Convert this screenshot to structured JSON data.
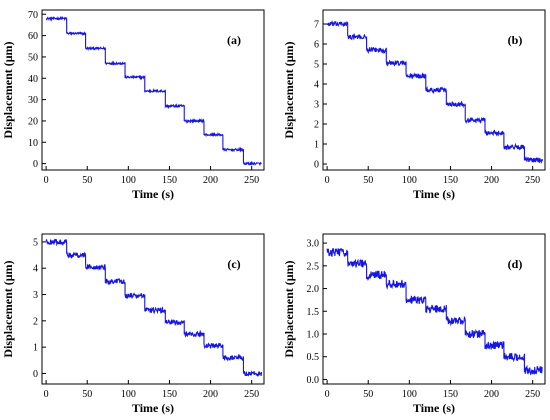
{
  "chart_data": [
    {
      "type": "line",
      "panel_label": "(a)",
      "xlabel": "Time (s)",
      "ylabel": "Displacement (μm)",
      "xlim": [
        -5,
        265
      ],
      "ylim": [
        -3,
        72
      ],
      "xticks": [
        0,
        50,
        100,
        150,
        200,
        250
      ],
      "yticks": [
        0,
        10,
        20,
        30,
        40,
        50,
        60,
        70
      ],
      "tick_labels_x": [
        "0",
        "50",
        "100",
        "150",
        "200",
        "250"
      ],
      "tick_labels_y": [
        "0",
        "10",
        "20",
        "30",
        "40",
        "50",
        "60",
        "70"
      ],
      "step_times": [
        0,
        25,
        48,
        72,
        96,
        120,
        145,
        168,
        192,
        215,
        240,
        262
      ],
      "step_levels": [
        68,
        61,
        54,
        47,
        40.5,
        34,
        27,
        20,
        13.5,
        6.5,
        0
      ],
      "noise": 0.5,
      "color": "#1515e6"
    },
    {
      "type": "line",
      "panel_label": "(b)",
      "xlabel": "Time (s)",
      "ylabel": "Displacement (μm)",
      "xlim": [
        -5,
        265
      ],
      "ylim": [
        -0.3,
        7.7
      ],
      "xticks": [
        0,
        50,
        100,
        150,
        200,
        250
      ],
      "yticks": [
        0,
        1,
        2,
        3,
        4,
        5,
        6,
        7
      ],
      "tick_labels_x": [
        "0",
        "50",
        "100",
        "150",
        "200",
        "250"
      ],
      "tick_labels_y": [
        "0",
        "1",
        "2",
        "3",
        "4",
        "5",
        "6",
        "7"
      ],
      "step_times": [
        0,
        25,
        48,
        72,
        96,
        120,
        145,
        168,
        192,
        215,
        240,
        262
      ],
      "step_levels": [
        7.0,
        6.35,
        5.7,
        5.05,
        4.4,
        3.7,
        3.0,
        2.2,
        1.55,
        0.85,
        0.2
      ],
      "noise": 0.12,
      "color": "#1515e6"
    },
    {
      "type": "line",
      "panel_label": "(c)",
      "xlabel": "Time (s)",
      "ylabel": "Displacement (μm)",
      "xlim": [
        -5,
        265
      ],
      "ylim": [
        -0.4,
        5.3
      ],
      "xticks": [
        0,
        50,
        100,
        150,
        200,
        250
      ],
      "yticks": [
        0,
        1,
        2,
        3,
        4,
        5
      ],
      "tick_labels_x": [
        "0",
        "50",
        "100",
        "150",
        "200",
        "250"
      ],
      "tick_labels_y": [
        "0",
        "1",
        "2",
        "3",
        "4",
        "5"
      ],
      "step_times": [
        0,
        25,
        48,
        72,
        96,
        120,
        145,
        168,
        192,
        215,
        240,
        262
      ],
      "step_levels": [
        5.0,
        4.5,
        4.05,
        3.5,
        2.95,
        2.4,
        1.95,
        1.5,
        1.05,
        0.6,
        0.0
      ],
      "noise": 0.1,
      "color": "#1515e6"
    },
    {
      "type": "line",
      "panel_label": "(d)",
      "xlabel": "Time (s)",
      "ylabel": "Displacement (μm)",
      "xlim": [
        -5,
        265
      ],
      "ylim": [
        -0.1,
        3.2
      ],
      "xticks": [
        0,
        50,
        100,
        150,
        200,
        250
      ],
      "yticks": [
        0,
        0.5,
        1,
        1.5,
        2,
        2.5,
        3
      ],
      "tick_labels_x": [
        "0",
        "50",
        "100",
        "150",
        "200",
        "250"
      ],
      "tick_labels_y": [
        "0.0",
        "0.5",
        "1.0",
        "1.5",
        "2.0",
        "2.5",
        "3.0"
      ],
      "step_times": [
        0,
        25,
        48,
        72,
        96,
        120,
        145,
        168,
        192,
        215,
        240,
        262
      ],
      "step_levels": [
        2.8,
        2.55,
        2.3,
        2.1,
        1.75,
        1.55,
        1.3,
        1.0,
        0.75,
        0.5,
        0.2
      ],
      "noise": 0.09,
      "color": "#1515e6"
    }
  ]
}
